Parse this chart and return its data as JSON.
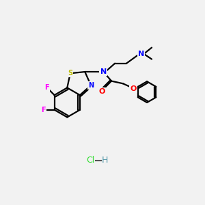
{
  "bg_color": "#f2f2f2",
  "colors": {
    "F": "#ff00ff",
    "S": "#bbbb00",
    "N": "#0000ff",
    "O": "#ff0000",
    "C": "#000000",
    "Cl": "#33dd33",
    "H": "#5599aa"
  },
  "figsize": [
    3.0,
    3.0
  ],
  "dpi": 100
}
